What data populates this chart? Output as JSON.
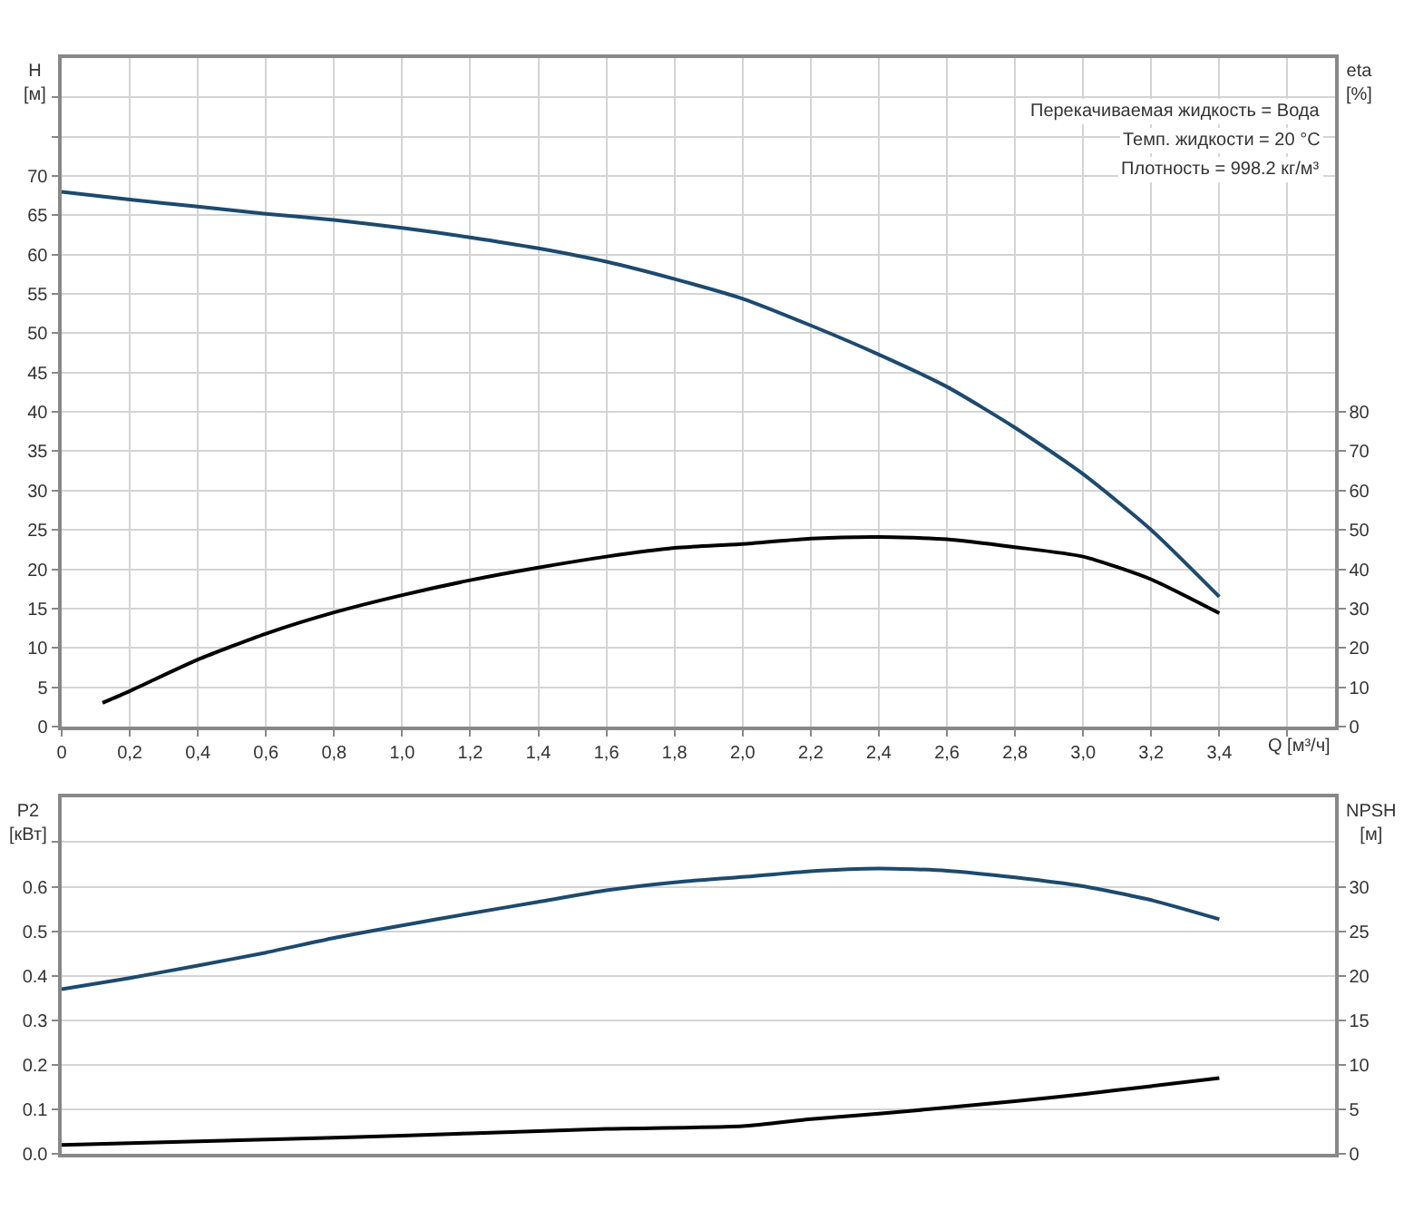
{
  "chart_data": [
    {
      "type": "line",
      "xlabel": "Q [м³/ч]",
      "ylabel": "H [м]",
      "y2label": "eta [%]",
      "annotations": [
        "Перекачиваемая жидкость = Вода",
        "Темп. жидкости = 20 °C",
        "Плотность = 998.2 кг/м³"
      ],
      "xlim": [
        0,
        3.74
      ],
      "xticks": [
        {
          "value": 0,
          "label": "0"
        },
        {
          "value": 0.2,
          "label": "0,2"
        },
        {
          "value": 0.4,
          "label": "0,4"
        },
        {
          "value": 0.6,
          "label": "0,6"
        },
        {
          "value": 0.8,
          "label": "0,8"
        },
        {
          "value": 1.0,
          "label": "1,0"
        },
        {
          "value": 1.2,
          "label": "1,2"
        },
        {
          "value": 1.4,
          "label": "1,4"
        },
        {
          "value": 1.6,
          "label": "1,6"
        },
        {
          "value": 1.8,
          "label": "1,8"
        },
        {
          "value": 2.0,
          "label": "2,0"
        },
        {
          "value": 2.2,
          "label": "2,2"
        },
        {
          "value": 2.4,
          "label": "2,4"
        },
        {
          "value": 2.6,
          "label": "2,6"
        },
        {
          "value": 2.8,
          "label": "2,8"
        },
        {
          "value": 3.0,
          "label": "3,0"
        },
        {
          "value": 3.2,
          "label": "3,2"
        },
        {
          "value": 3.4,
          "label": "3,4"
        },
        {
          "value": 3.6,
          "label": null
        }
      ],
      "ylim": [
        0,
        85
      ],
      "yticks": [
        0,
        5,
        10,
        15,
        20,
        25,
        30,
        35,
        40,
        45,
        50,
        55,
        60,
        65,
        70,
        {
          "value": 75,
          "label": null
        },
        {
          "value": 80,
          "label": null
        }
      ],
      "y2lim": [
        0,
        170
      ],
      "y2ticks": [
        0,
        10,
        20,
        30,
        40,
        50,
        60,
        70,
        80
      ],
      "grid": true,
      "marker": "none",
      "line_style": "solid",
      "series": [
        {
          "color": "#1d4a6e",
          "x": [
            0,
            0.2,
            0.4,
            0.6,
            0.8,
            1.0,
            1.2,
            1.4,
            1.6,
            1.8,
            2.0,
            2.2,
            2.4,
            2.6,
            2.8,
            3.0,
            3.2,
            3.4
          ],
          "values": [
            68,
            67,
            66.1,
            65.2,
            64.4,
            63.4,
            62.2,
            60.8,
            59.1,
            56.9,
            54.4,
            51.0,
            47.3,
            43.2,
            38.0,
            32.1,
            25.0,
            16.5
          ]
        },
        {
          "color": "#000000",
          "axis": "y2",
          "x": [
            0.12,
            0.2,
            0.4,
            0.6,
            0.8,
            1.0,
            1.2,
            1.4,
            1.6,
            1.8,
            2.0,
            2.2,
            2.4,
            2.6,
            2.8,
            3.0,
            3.2,
            3.4
          ],
          "values": [
            6,
            9,
            17,
            23.6,
            29,
            33.4,
            37.2,
            40.4,
            43.2,
            45.4,
            46.4,
            47.8,
            48.2,
            47.6,
            45.6,
            43.2,
            37.4,
            28.8
          ]
        }
      ]
    },
    {
      "type": "line",
      "ylabel": "P2 [кВт]",
      "y2label": "NPSH [м]",
      "xlim": [
        0,
        3.74
      ],
      "tick_labels": "y",
      "ylim": [
        0,
        0.8
      ],
      "yticks": [
        {
          "value": 0,
          "label": "0.0"
        },
        0.1,
        0.2,
        0.3,
        0.4,
        0.5,
        0.6,
        {
          "value": 0.7,
          "label": null
        }
      ],
      "y2lim": [
        0,
        40
      ],
      "y2ticks": [
        0,
        5,
        10,
        15,
        20,
        25,
        30
      ],
      "grid": true,
      "marker": "none",
      "line_style": "solid",
      "series": [
        {
          "color": "#1d4a6e",
          "x": [
            0,
            0.2,
            0.4,
            0.6,
            0.8,
            1.0,
            1.2,
            1.4,
            1.6,
            1.8,
            2.0,
            2.2,
            2.4,
            2.6,
            2.8,
            3.0,
            3.2,
            3.4
          ],
          "values": [
            0.37,
            0.395,
            0.423,
            0.452,
            0.485,
            0.513,
            0.54,
            0.566,
            0.592,
            0.61,
            0.622,
            0.635,
            0.641,
            0.636,
            0.621,
            0.601,
            0.57,
            0.527
          ]
        },
        {
          "color": "#000000",
          "axis": "y2",
          "x": [
            0,
            0.4,
            0.8,
            1.2,
            1.6,
            2.0,
            2.2,
            2.4,
            2.6,
            2.8,
            3.0,
            3.2,
            3.4
          ],
          "values": [
            1.0,
            1.4,
            1.8,
            2.3,
            2.8,
            3.1,
            3.9,
            4.5,
            5.2,
            5.9,
            6.7,
            7.6,
            8.5
          ]
        }
      ]
    }
  ]
}
